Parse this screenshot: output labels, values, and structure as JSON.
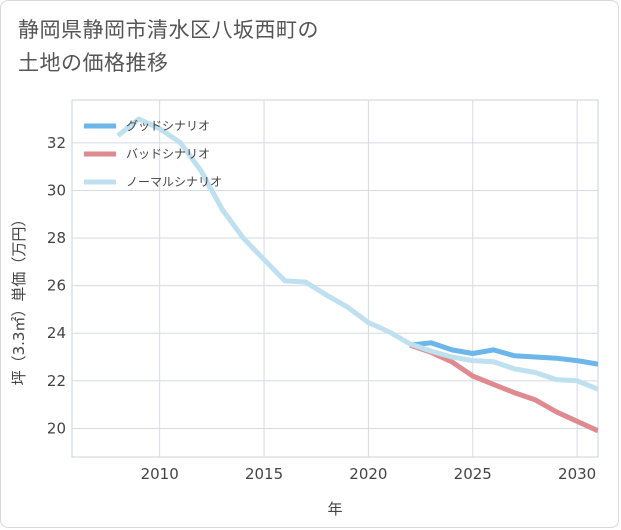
{
  "title": {
    "line1": "静岡県静岡市清水区八坂西町の",
    "line2": "土地の価格推移"
  },
  "chart_data": {
    "type": "line",
    "xlabel": "年",
    "ylabel": "坪（3.3㎡）単価（万円）",
    "xlim": [
      2005.8,
      2031
    ],
    "ylim": [
      18.8,
      33.8
    ],
    "xticks": [
      2010,
      2015,
      2020,
      2025,
      2030
    ],
    "yticks": [
      20,
      22,
      24,
      26,
      28,
      30,
      32
    ],
    "grid": true,
    "legend_position": "top-left",
    "series": [
      {
        "name": "グッドシナリオ",
        "color": "#6cb6ea",
        "x": [
          2022,
          2023,
          2024,
          2025,
          2026,
          2027,
          2028,
          2029,
          2030,
          2031
        ],
        "y": [
          23.5,
          23.6,
          23.3,
          23.15,
          23.3,
          23.05,
          23.0,
          22.95,
          22.85,
          22.7
        ]
      },
      {
        "name": "バッドシナリオ",
        "color": "#df8a90",
        "x": [
          2022,
          2023,
          2024,
          2025,
          2026,
          2027,
          2028,
          2029,
          2030,
          2031
        ],
        "y": [
          23.5,
          23.2,
          22.8,
          22.2,
          21.85,
          21.5,
          21.2,
          20.7,
          20.3,
          19.9
        ]
      },
      {
        "name": "ノーマルシナリオ",
        "color": "#bfe0ee",
        "x": [
          2008,
          2009,
          2010,
          2011,
          2012,
          2013,
          2014,
          2015,
          2016,
          2017,
          2018,
          2019,
          2020,
          2021,
          2022,
          2023,
          2024,
          2025,
          2026,
          2027,
          2028,
          2029,
          2030,
          2031
        ],
        "y": [
          32.3,
          33.0,
          32.6,
          32.0,
          30.8,
          29.2,
          28.0,
          27.1,
          26.2,
          26.15,
          25.6,
          25.1,
          24.45,
          24.05,
          23.55,
          23.25,
          23.0,
          22.85,
          22.8,
          22.5,
          22.35,
          22.05,
          22.0,
          21.65
        ]
      }
    ]
  }
}
